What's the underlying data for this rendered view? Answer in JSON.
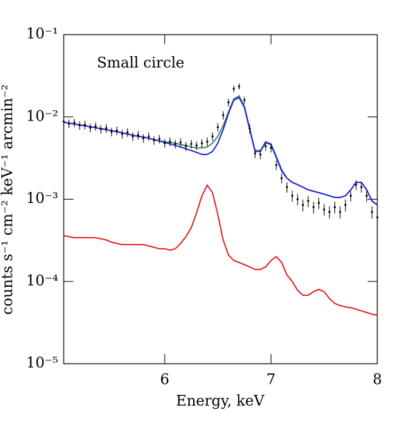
{
  "chart_data": {
    "type": "line",
    "annotation": "Small circle",
    "xlabel": "Energy, keV",
    "ylabel": "counts s⁻¹ cm⁻² keV⁻¹ arcmin⁻²",
    "log_y": true,
    "xlim": [
      5.05,
      8.0
    ],
    "ylim": [
      1e-05,
      0.1
    ],
    "xticks": [
      6,
      7,
      8
    ],
    "yticks": [
      {
        "value": 1e-05,
        "label": "10⁻⁵"
      },
      {
        "value": 0.0001,
        "label": "10⁻⁴"
      },
      {
        "value": 0.001,
        "label": "10⁻³"
      },
      {
        "value": 0.01,
        "label": "10⁻²"
      },
      {
        "value": 0.1,
        "label": "10⁻¹"
      }
    ],
    "x": [
      5.05,
      5.1,
      5.15,
      5.2,
      5.25,
      5.3,
      5.35,
      5.4,
      5.45,
      5.5,
      5.55,
      5.6,
      5.65,
      5.7,
      5.75,
      5.8,
      5.85,
      5.9,
      5.95,
      6.0,
      6.05,
      6.1,
      6.15,
      6.2,
      6.25,
      6.3,
      6.35,
      6.4,
      6.45,
      6.5,
      6.55,
      6.6,
      6.65,
      6.7,
      6.75,
      6.8,
      6.85,
      6.9,
      6.95,
      7.0,
      7.05,
      7.1,
      7.15,
      7.2,
      7.25,
      7.3,
      7.35,
      7.4,
      7.45,
      7.5,
      7.55,
      7.6,
      7.65,
      7.7,
      7.75,
      7.8,
      7.85,
      7.9,
      7.95,
      8.0
    ],
    "points": {
      "color": "#000000",
      "values": [
        0.0088,
        0.0083,
        0.0085,
        0.0079,
        0.008,
        0.0074,
        0.0077,
        0.0071,
        0.0073,
        0.0066,
        0.0068,
        0.0062,
        0.0065,
        0.0058,
        0.006,
        0.0055,
        0.0058,
        0.0052,
        0.0054,
        0.0048,
        0.005,
        0.0047,
        0.0049,
        0.0044,
        0.0047,
        0.0045,
        0.0048,
        0.005,
        0.0058,
        0.0075,
        0.0105,
        0.015,
        0.022,
        0.0235,
        0.016,
        0.0072,
        0.0036,
        0.0035,
        0.0044,
        0.0042,
        0.0026,
        0.0018,
        0.0014,
        0.0011,
        0.001,
        0.00085,
        0.00095,
        0.0008,
        0.0009,
        0.00075,
        0.0007,
        0.0008,
        0.0007,
        0.00085,
        0.0011,
        0.0015,
        0.0014,
        0.0011,
        0.0007,
        0.0006
      ],
      "errors": [
        0.0011,
        0.001,
        0.001,
        0.00095,
        0.00096,
        0.0009,
        0.0009,
        0.00085,
        0.00088,
        0.0008,
        0.0008,
        0.00075,
        0.00078,
        0.0007,
        0.00072,
        0.00066,
        0.0007,
        0.00062,
        0.00065,
        0.00058,
        0.0006,
        0.00056,
        0.00059,
        0.00053,
        0.00056,
        0.00054,
        0.00058,
        0.0006,
        0.0007,
        0.0009,
        0.0012,
        0.0016,
        0.002,
        0.002,
        0.0016,
        0.0009,
        0.00045,
        0.00045,
        0.0005,
        0.0005,
        0.00035,
        0.00025,
        0.0002,
        0.00017,
        0.00016,
        0.00014,
        0.00015,
        0.00013,
        0.00014,
        0.00012,
        0.00012,
        0.00013,
        0.00012,
        0.00014,
        0.00016,
        0.0002,
        0.0002,
        0.00017,
        0.00012,
        0.0001
      ]
    },
    "lines": [
      {
        "color": "#e31a1c",
        "values": [
          0.00036,
          0.00035,
          0.00034,
          0.00034,
          0.00034,
          0.00034,
          0.00034,
          0.00033,
          0.00032,
          0.0003,
          0.00029,
          0.00028,
          0.00028,
          0.00028,
          0.00028,
          0.00028,
          0.00027,
          0.00026,
          0.00025,
          0.00025,
          0.00024,
          0.00025,
          0.00029,
          0.00035,
          0.00045,
          0.00068,
          0.0011,
          0.00148,
          0.0012,
          0.00065,
          0.00032,
          0.00021,
          0.00018,
          0.00017,
          0.00016,
          0.00015,
          0.00014,
          0.00014,
          0.00015,
          0.00018,
          0.0002,
          0.00017,
          0.00012,
          0.0001,
          7.8e-05,
          6.8e-05,
          6.8e-05,
          7.5e-05,
          8e-05,
          7.5e-05,
          6.2e-05,
          5.4e-05,
          5.1e-05,
          4.9e-05,
          4.8e-05,
          4.6e-05,
          4.4e-05,
          4.2e-05,
          4e-05,
          3.9e-05
        ]
      },
      {
        "color": "#3a8a6e",
        "values": [
          0.0086,
          0.0084,
          0.0082,
          0.008,
          0.0078,
          0.0076,
          0.0074,
          0.0072,
          0.007,
          0.0068,
          0.0066,
          0.0064,
          0.0062,
          0.006,
          0.0058,
          0.0057,
          0.0055,
          0.0053,
          0.0051,
          0.005,
          0.0049,
          0.0048,
          0.0046,
          0.0045,
          0.0043,
          0.0042,
          0.0042,
          0.0043,
          0.0048,
          0.0058,
          0.0078,
          0.0115,
          0.0165,
          0.018,
          0.0135,
          0.0072,
          0.0039,
          0.0039,
          0.005,
          0.0047,
          0.0033,
          0.0023,
          0.0018,
          0.0016,
          0.0015,
          0.0014,
          0.0013,
          0.00125,
          0.0012,
          0.00115,
          0.0011,
          0.00105,
          0.00105,
          0.0011,
          0.0013,
          0.0016,
          0.0016,
          0.0013,
          0.00095,
          0.00085
        ]
      },
      {
        "color": "#1f1fcf",
        "values": [
          0.0086,
          0.0084,
          0.0082,
          0.008,
          0.0078,
          0.0076,
          0.0074,
          0.0072,
          0.007,
          0.0068,
          0.0066,
          0.0064,
          0.0062,
          0.006,
          0.0058,
          0.0057,
          0.0055,
          0.0053,
          0.0051,
          0.0049,
          0.0047,
          0.0045,
          0.0043,
          0.0041,
          0.0039,
          0.0037,
          0.0035,
          0.0035,
          0.0038,
          0.0048,
          0.007,
          0.011,
          0.016,
          0.0172,
          0.013,
          0.007,
          0.0038,
          0.0038,
          0.0049,
          0.0046,
          0.0032,
          0.0022,
          0.0018,
          0.0016,
          0.0015,
          0.0014,
          0.0013,
          0.00125,
          0.0012,
          0.00115,
          0.0011,
          0.00105,
          0.00105,
          0.0011,
          0.0013,
          0.0016,
          0.0016,
          0.0013,
          0.00095,
          0.00085
        ]
      }
    ]
  }
}
